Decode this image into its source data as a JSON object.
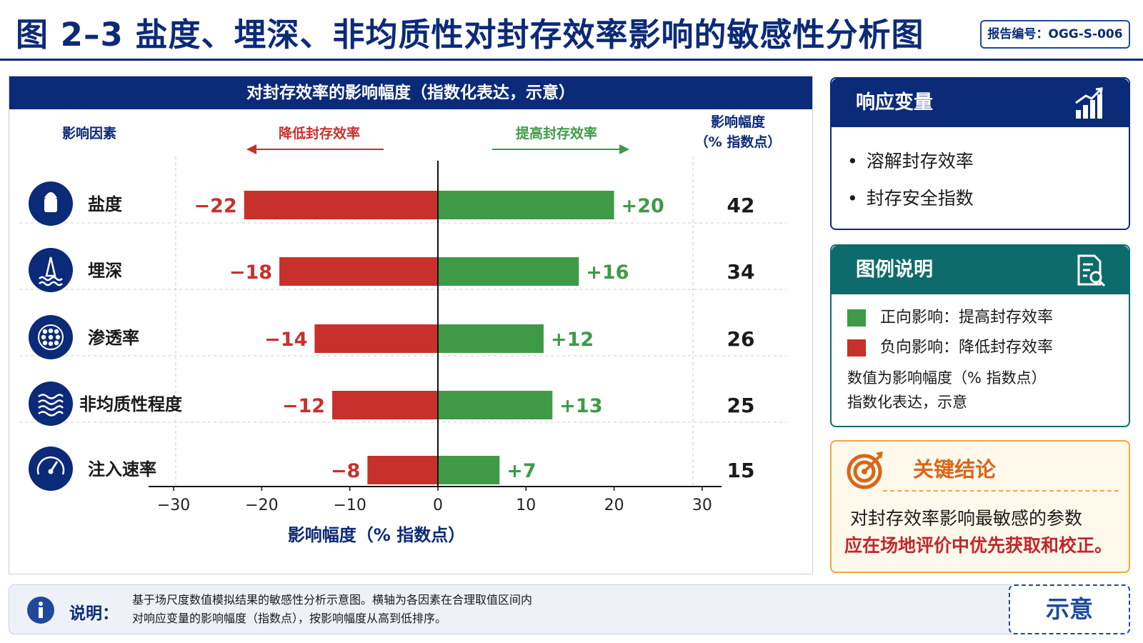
{
  "header": {
    "title": "图 2–3 盐度、埋深、非均质性对封存效率影响的敏感性分析图",
    "report_no": "报告编号：OGG-S-006"
  },
  "chart_data": {
    "type": "bar",
    "subtype": "tornado",
    "title": "对封存效率的影响幅度（指数化表达，示意）",
    "factor_header": "影响因素",
    "negative_direction_label": "降低封存效率",
    "positive_direction_label": "提高封存效率",
    "magnitude_header": [
      "影响幅度",
      "（% 指数点）"
    ],
    "categories": [
      "盐度",
      "埋深",
      "渗透率",
      "非均质性程度",
      "注入速率"
    ],
    "icons": [
      "salt-shaker-icon",
      "depth-rig-icon",
      "porous-rock-icon",
      "layered-heterogeneity-icon",
      "speed-gauge-icon"
    ],
    "series": [
      {
        "name": "降低封存效率",
        "color": "#c8302c",
        "values": [
          -22,
          -18,
          -14,
          -12,
          -8
        ],
        "labels": [
          "−22",
          "−18",
          "−14",
          "−12",
          "−8"
        ]
      },
      {
        "name": "提高封存效率",
        "color": "#3f9a48",
        "values": [
          20,
          16,
          12,
          13,
          7
        ],
        "labels": [
          "+20",
          "+16",
          "+12",
          "+13",
          "+7"
        ]
      }
    ],
    "magnitude": [
      42,
      34,
      26,
      25,
      15
    ],
    "xlim": [
      -30,
      30
    ],
    "xticks": [
      -30,
      -20,
      -10,
      0,
      10,
      20,
      30
    ],
    "xtick_labels": [
      "−30",
      "−20",
      "−10",
      "0",
      "10",
      "20",
      "30"
    ],
    "xlabel": "影响幅度（% 指数点）",
    "grid": false
  },
  "response_card": {
    "title": "响应变量",
    "icon": "bar-chart-rising-icon",
    "items": [
      "溶解封存效率",
      "封存安全指数"
    ]
  },
  "legend_card": {
    "title": "图例说明",
    "icon": "document-search-icon",
    "positive": {
      "label": "正向影响：提高封存效率",
      "color": "#3f9a48"
    },
    "negative": {
      "label": "负向影响：降低封存效率",
      "color": "#c8302c"
    },
    "note_line1": "数值为影响幅度（% 指数点）",
    "note_line2": "指数化表达，示意"
  },
  "conclusion_card": {
    "title": "关键结论",
    "icon": "target-icon",
    "line1": "对封存效率影响最敏感的参数",
    "line2": "应在场地评价中优先获取和校正。"
  },
  "footer": {
    "label": "说明：",
    "line1": "基于场尺度数值模拟结果的敏感性分析示意图。横轴为各因素在合理取值区间内",
    "line2": "对响应变量的影响幅度（指数点），按影响幅度从高到低排序。",
    "stamp": "示意"
  },
  "colors": {
    "navy": "#0b2a78",
    "teal": "#0e6b6b",
    "orange": "#d9661a",
    "red": "#c8302c",
    "green": "#3f9a48"
  }
}
